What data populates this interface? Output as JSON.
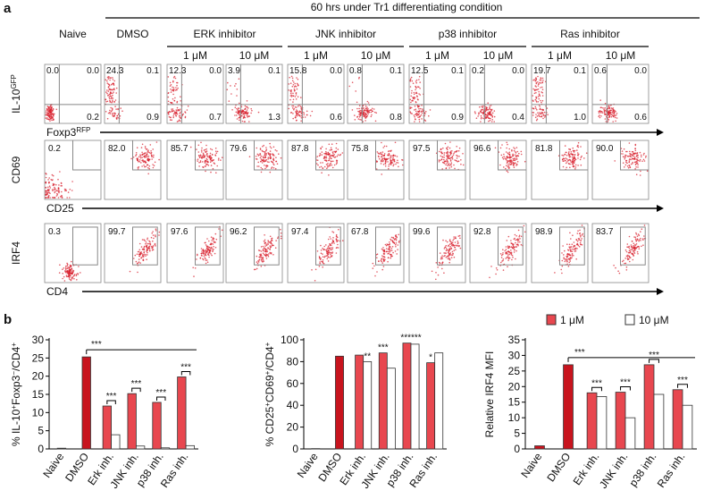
{
  "panel_a": {
    "label": "a",
    "header": "60 hrs under Tr1 differentiating condition",
    "columns": [
      "Naive",
      "DMSO"
    ],
    "groups": [
      {
        "name": "ERK inhibitor",
        "doses": [
          "1 μM",
          "10 μM"
        ]
      },
      {
        "name": "JNK inhibitor",
        "doses": [
          "1 μM",
          "10 μM"
        ]
      },
      {
        "name": "p38 inhibitor",
        "doses": [
          "1 μM",
          "10 μM"
        ]
      },
      {
        "name": "Ras inhibitor",
        "doses": [
          "1 μM",
          "10 μM"
        ]
      }
    ],
    "rows": [
      {
        "y_label": "IL-10",
        "y_sup": "GFP",
        "x_label": "Foxp3",
        "x_sup": "RFP",
        "values": [
          [
            "0.0",
            "0.0",
            "0.2"
          ],
          [
            "24.3",
            "0.1",
            "0.9"
          ],
          [
            "12.3",
            "0.0",
            "0.7"
          ],
          [
            "3.9",
            "0.1",
            "1.3"
          ],
          [
            "15.8",
            "0.0",
            "0.6"
          ],
          [
            "0.8",
            "0.1",
            "0.8"
          ],
          [
            "12.5",
            "0.1",
            "0.9"
          ],
          [
            "0.2",
            "0.0",
            "0.4"
          ],
          [
            "19.7",
            "0.1",
            "1.0"
          ],
          [
            "0.6",
            "0.0",
            "0.6"
          ]
        ]
      },
      {
        "y_label": "CD69",
        "x_label": "CD25",
        "values": [
          "0.2",
          "82.0",
          "85.7",
          "79.6",
          "87.8",
          "75.8",
          "97.5",
          "96.6",
          "81.8",
          "90.0"
        ]
      },
      {
        "y_label": "IRF4",
        "x_label": "CD4",
        "values": [
          "0.3",
          "99.7",
          "97.6",
          "96.2",
          "97.4",
          "67.8",
          "99.6",
          "92.8",
          "98.9",
          "83.7"
        ]
      }
    ]
  },
  "panel_b": {
    "label": "b",
    "legend": [
      {
        "name": "1 μM",
        "color": "#e8474f"
      },
      {
        "name": "10 μM",
        "color": "#ffffff"
      }
    ]
  },
  "chart_data": [
    {
      "type": "bar",
      "ylabel": [
        {
          "text": "% IL-10"
        },
        {
          "text": "+",
          "sup": true
        },
        {
          "text": "Foxp3"
        },
        {
          "text": "−",
          "sup": true
        },
        {
          "text": "/CD4"
        },
        {
          "text": "+",
          "sup": true
        }
      ],
      "categories": [
        "Naive",
        "DMSO",
        "Erk inh.",
        "JNK inh.",
        "p38 inh.",
        "Ras inh."
      ],
      "series": [
        {
          "color": "#e8474f",
          "values": [
            0.2,
            25.3,
            11.8,
            15.2,
            12.8,
            19.8
          ]
        },
        {
          "color": "#ffffff",
          "values": [
            null,
            null,
            3.9,
            0.8,
            0.3,
            0.9
          ]
        }
      ],
      "control_color": "#c8141e",
      "ylim": [
        0,
        30
      ],
      "yticks": [
        0,
        5,
        10,
        15,
        20,
        25,
        30
      ],
      "annotations": [
        "***",
        "***",
        "***",
        "***",
        "***"
      ]
    },
    {
      "type": "bar",
      "ylabel": [
        {
          "text": "% CD25"
        },
        {
          "text": "+",
          "sup": true
        },
        {
          "text": "CD69"
        },
        {
          "text": "+",
          "sup": true
        },
        {
          "text": "/CD4"
        },
        {
          "text": "+",
          "sup": true
        }
      ],
      "categories": [
        "Naive",
        "DMSO",
        "Erk inh.",
        "JNK inh.",
        "p38 inh.",
        "Ras inh."
      ],
      "series": [
        {
          "color": "#e8474f",
          "values": [
            0.3,
            85,
            86,
            88,
            97,
            79
          ]
        },
        {
          "color": "#ffffff",
          "values": [
            null,
            null,
            80,
            74,
            96,
            88
          ]
        }
      ],
      "control_color": "#c8141e",
      "ylim": [
        0,
        100
      ],
      "yticks": [
        0,
        20,
        40,
        60,
        80,
        100
      ],
      "annotations": [
        "**",
        "***",
        "******",
        "*"
      ]
    },
    {
      "type": "bar",
      "ylabel": [
        {
          "text": "Relative IRF4 MFI"
        }
      ],
      "categories": [
        "Naive",
        "DMSO",
        "Erk inh.",
        "JNK inh.",
        "p38 inh.",
        "Ras inh."
      ],
      "series": [
        {
          "color": "#e8474f",
          "values": [
            1,
            27,
            18,
            18.2,
            27,
            19
          ]
        },
        {
          "color": "#ffffff",
          "values": [
            null,
            null,
            16.8,
            10,
            17.5,
            14
          ]
        }
      ],
      "control_color": "#c8141e",
      "ylim": [
        0,
        35
      ],
      "yticks": [
        0,
        5,
        10,
        15,
        20,
        25,
        30,
        35
      ],
      "annotations": [
        "***",
        "***",
        "***",
        "***",
        "***"
      ]
    }
  ]
}
